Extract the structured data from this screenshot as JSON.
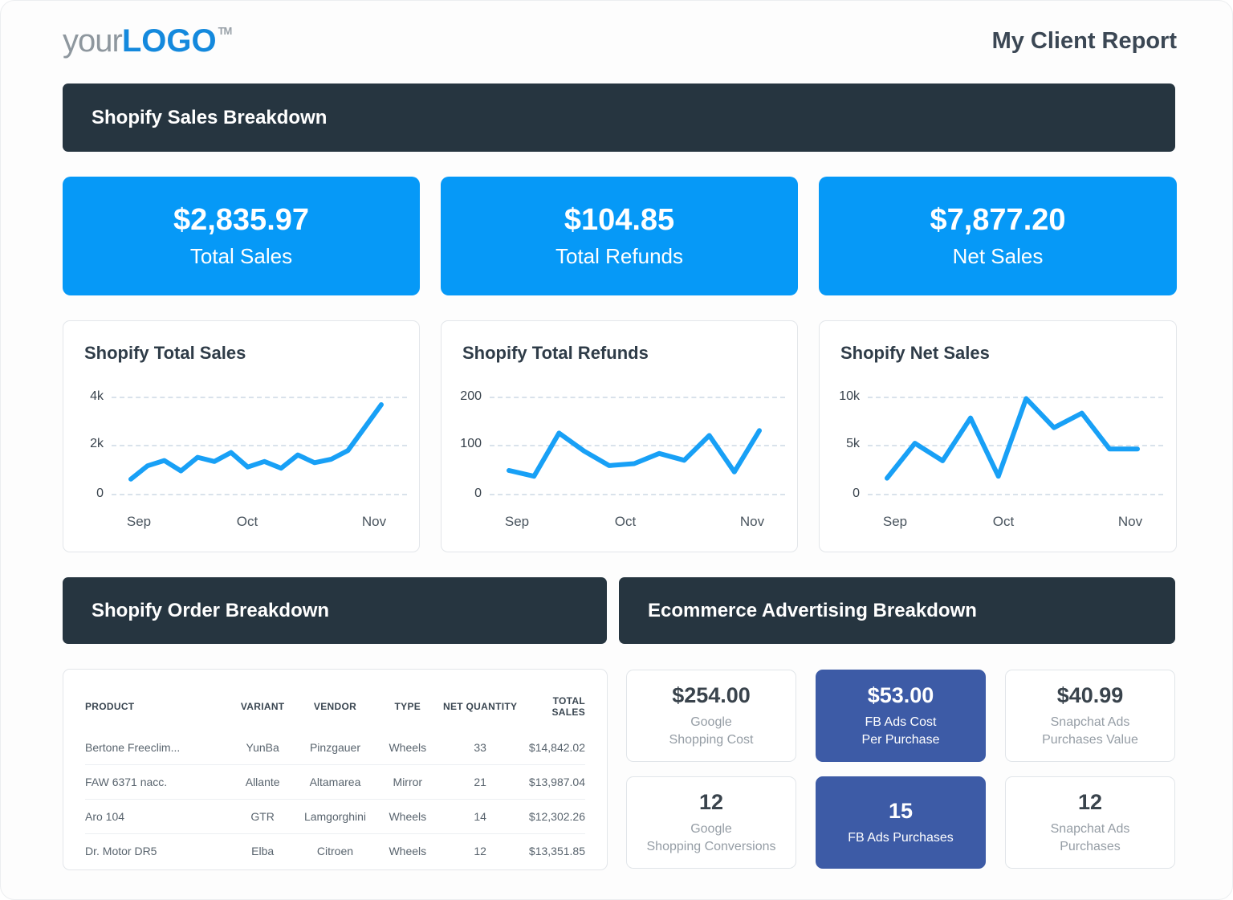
{
  "header": {
    "logo": {
      "your": "your",
      "logo": "LOGO",
      "tm": "TM"
    },
    "title": "My Client Report"
  },
  "sections": {
    "sales_banner": "Shopify Sales Breakdown",
    "order_banner": "Shopify Order Breakdown",
    "advertising_banner": "Ecommerce Advertising Breakdown"
  },
  "kpis": [
    {
      "value": "$2,835.97",
      "label": "Total Sales"
    },
    {
      "value": "$104.85",
      "label": "Total Refunds"
    },
    {
      "value": "$7,877.20",
      "label": "Net Sales"
    }
  ],
  "chart_data": [
    {
      "type": "line",
      "title": "Shopify Total Sales",
      "x_ticks": [
        "Sep",
        "Oct",
        "Nov"
      ],
      "y_ticks": [
        "4k",
        "2k",
        "0"
      ],
      "y_axis_max": 4000,
      "ylim": [
        0,
        4000
      ],
      "grid": "dashed horizontal",
      "legend": "none",
      "values": [
        600,
        1150,
        1370,
        940,
        1500,
        1330,
        1700,
        1100,
        1330,
        1050,
        1600,
        1280,
        1420,
        1780,
        2720,
        3670
      ]
    },
    {
      "type": "line",
      "title": "Shopify Total Refunds",
      "x_ticks": [
        "Sep",
        "Oct",
        "Nov"
      ],
      "y_ticks": [
        "200",
        "100",
        "0"
      ],
      "y_axis_max": 200,
      "ylim": [
        0,
        200
      ],
      "grid": "dashed horizontal",
      "legend": "none",
      "values": [
        48,
        36,
        125,
        88,
        58,
        62,
        83,
        69,
        120,
        45,
        130
      ]
    },
    {
      "type": "line",
      "title": "Shopify Net Sales",
      "x_ticks": [
        "Sep",
        "Oct",
        "Nov"
      ],
      "y_ticks": [
        "10k",
        "5k",
        "0"
      ],
      "y_axis_max": 10000,
      "ylim": [
        0,
        10000
      ],
      "grid": "dashed horizontal",
      "legend": "none",
      "values": [
        1600,
        5200,
        3400,
        7800,
        1800,
        9800,
        6800,
        8300,
        4600,
        4600
      ]
    }
  ],
  "order_table": {
    "headers": [
      "PRODUCT",
      "VARIANT",
      "VENDOR",
      "TYPE",
      "NET QUANTITY",
      "TOTAL SALES"
    ],
    "rows": [
      [
        "Bertone Freeclim...",
        "YunBa",
        "Pinzgauer",
        "Wheels",
        "33",
        "$14,842.02"
      ],
      [
        "FAW 6371 nacc.",
        "Allante",
        "Altamarea",
        "Mirror",
        "21",
        "$13,987.04"
      ],
      [
        "Aro 104",
        "GTR",
        "Lamgorghini",
        "Wheels",
        "14",
        "$12,302.26"
      ],
      [
        "Dr. Motor DR5",
        "Elba",
        "Citroen",
        "Wheels",
        "12",
        "$13,351.85"
      ]
    ]
  },
  "ad_cards": [
    {
      "value": "$254.00",
      "label_lines": [
        "Google",
        "Shopping Cost"
      ],
      "highlight": false
    },
    {
      "value": "$53.00",
      "label_lines": [
        "FB Ads Cost",
        "Per Purchase"
      ],
      "highlight": true
    },
    {
      "value": "$40.99",
      "label_lines": [
        "Snapchat Ads",
        "Purchases Value"
      ],
      "highlight": false
    },
    {
      "value": "12",
      "label_lines": [
        "Google",
        "Shopping Conversions"
      ],
      "highlight": false
    },
    {
      "value": "15",
      "label_lines": [
        "FB Ads Purchases"
      ],
      "highlight": true
    },
    {
      "value": "12",
      "label_lines": [
        "Snapchat Ads",
        "Purchases"
      ],
      "highlight": false
    }
  ],
  "colors": {
    "kpi_blue": "#0699f7",
    "chart_line": "#18a0f6",
    "banner_dark": "#263540",
    "highlight_indigo": "#3d5ba6",
    "logo_blue": "#1489dd",
    "logo_gray": "#8e979e",
    "title_dark": "#3b4754"
  }
}
